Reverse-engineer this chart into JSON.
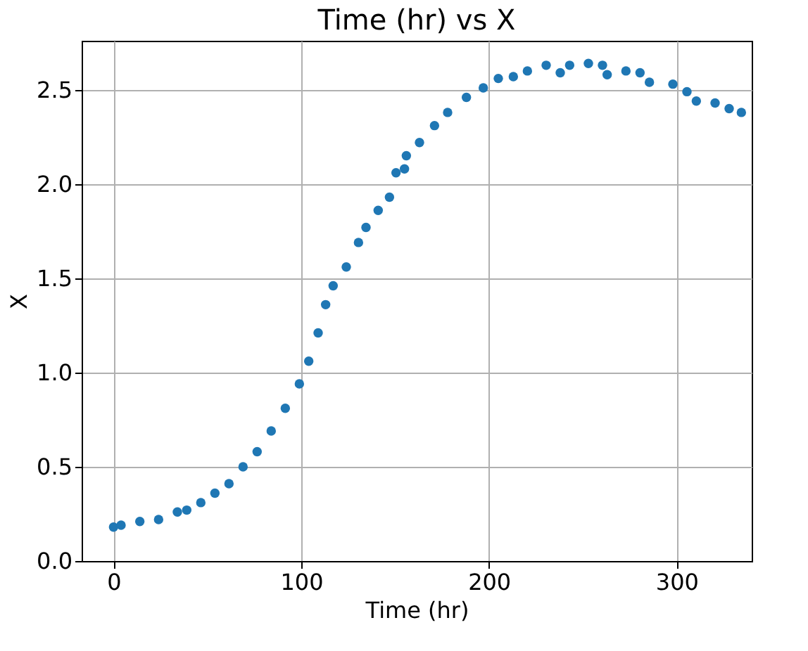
{
  "chart_data": {
    "type": "scatter",
    "title": "Time (hr) vs X",
    "xlabel": "Time (hr)",
    "ylabel": "X",
    "xlim": [
      -17,
      340
    ],
    "ylim": [
      0,
      2.76
    ],
    "xticks": [
      0,
      100,
      200,
      300
    ],
    "yticks": [
      {
        "value": 0,
        "label": "0.0"
      },
      0.5,
      {
        "value": 1,
        "label": "1.0"
      },
      1.5,
      {
        "value": 2,
        "label": "2.0"
      },
      2.5
    ],
    "grid": true,
    "marker": "circle",
    "series": [
      {
        "color": "#1f77b4",
        "x": [
          0,
          4,
          14,
          24,
          34,
          39,
          46.5,
          54,
          61.5,
          69,
          76.5,
          84,
          91.5,
          99,
          104,
          109,
          113,
          117,
          124,
          130.5,
          134.5,
          141,
          147,
          150.5,
          155,
          156,
          163,
          171,
          178,
          188,
          197,
          205,
          213,
          220.5,
          230.5,
          238,
          243,
          253,
          260.5,
          263,
          273,
          280.5,
          285.5,
          298,
          305.5,
          310.5,
          320.5,
          328,
          334.5
        ],
        "values": [
          0.18,
          0.19,
          0.21,
          0.22,
          0.26,
          0.27,
          0.31,
          0.36,
          0.41,
          0.5,
          0.58,
          0.69,
          0.81,
          0.94,
          1.06,
          1.21,
          1.36,
          1.46,
          1.56,
          1.69,
          1.77,
          1.86,
          1.93,
          2.06,
          2.08,
          2.15,
          2.22,
          2.31,
          2.38,
          2.46,
          2.51,
          2.56,
          2.57,
          2.6,
          2.63,
          2.59,
          2.63,
          2.64,
          2.63,
          2.58,
          2.6,
          2.59,
          2.54,
          2.53,
          2.49,
          2.44,
          2.43,
          2.4,
          2.38
        ]
      }
    ]
  }
}
